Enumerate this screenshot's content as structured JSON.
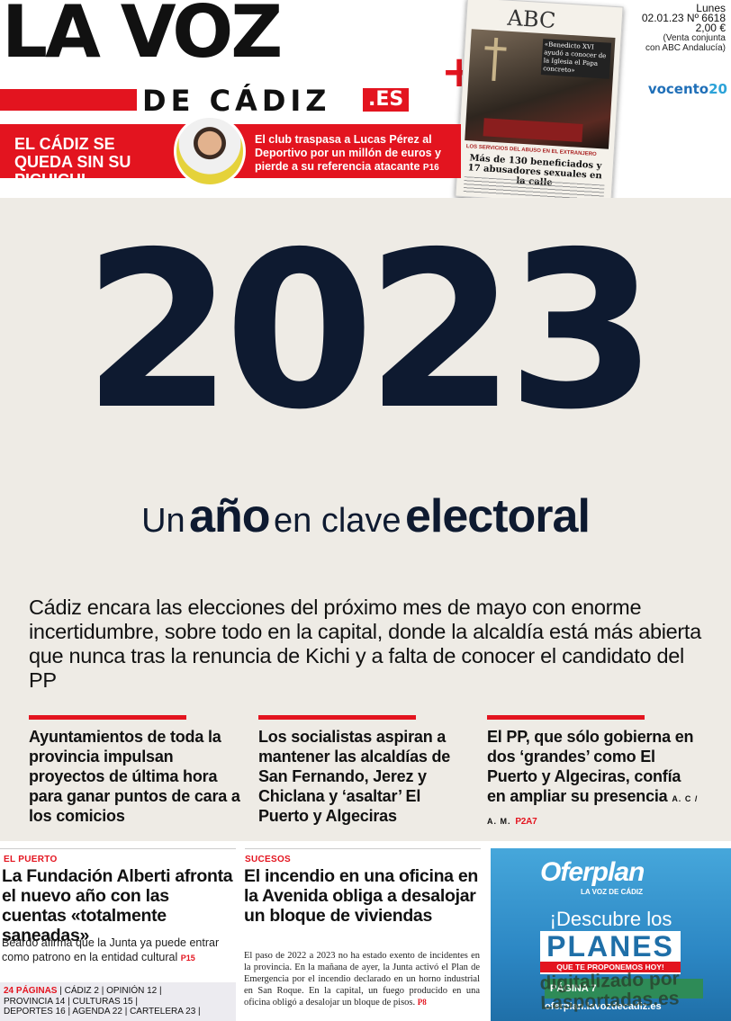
{
  "masthead": {
    "name_top": "LA VOZ",
    "name_bottom": "DE CÁDIZ",
    "badge": ".ES",
    "plus": "+"
  },
  "issue": {
    "day": "Lunes",
    "date_number": "02.01.23 Nº 6618",
    "price": "2,00 €",
    "note1": "(Venta conjunta",
    "note2": "con ABC Andalucía)",
    "group_logo": "vocento",
    "group_logo_number": "20"
  },
  "abc_cover": {
    "logo": "ABC",
    "quote": "«Benedicto XVI ayudó a conocer de la Iglesia el Papa concreto»",
    "kicker": "LOS SERVICIOS DEL ABUSO EN EL EXTRANJERO",
    "headline": "Más de 130 beneficiados y 17 abusadores sexuales en la calle"
  },
  "sports_teaser": {
    "title": "EL CÁDIZ SE QUEDA SIN SU PICHICHI",
    "text": "El club traspasa a Lucas Pérez al Deportivo por un millón de euros y pierde a su referencia atacante",
    "page": "P16"
  },
  "feature": {
    "year": "2023",
    "sub_1": "Un",
    "sub_2": "año",
    "sub_3": "en clave",
    "sub_4": "electoral",
    "lead": "Cádiz encara las elecciones del próximo mes de mayo con enorme incertidumbre, sobre todo en la capital, donde la alcaldía está más abierta que nunca tras la renuncia de Kichi y a falta de conocer el candidato del PP",
    "columns": [
      {
        "text": "Ayuntamientos de toda la provincia impulsan proyectos de última hora para ganar puntos de cara a los comicios"
      },
      {
        "text": "Los socialistas aspiran a mantener las alcaldías de San Fernando, Jerez y Chiclana y ‘asaltar’ El Puerto y Algeciras"
      },
      {
        "text": "El PP, que sólo gobierna en dos ‘grandes’ como El Puerto y Algeciras, confía en ampliar su presencia",
        "byline": "A. C / A. M.",
        "page": "P2A7"
      }
    ]
  },
  "story_left": {
    "kicker": "EL PUERTO",
    "headline": "La Fundación Alberti afronta el nuevo año con las cuentas «totalmente saneadas»",
    "summary": "Beardo afirma que la Junta ya puede entrar como patrono en la entidad cultural",
    "page": "P15"
  },
  "story_center": {
    "kicker": "SUCESOS",
    "headline": "El incendio en una oficina en la Avenida obliga a desalojar un bloque de viviendas",
    "body": "El paso de 2022 a 2023 no ha estado exento de incidentes en la provincia. En la mañana de ayer, la Junta activó el Plan de Emergencia por el incendio declarado en un horno industrial en San Roque. En la capital, un fuego producido en una oficina obligó a desalojar un bloque de pisos.",
    "page": "P8"
  },
  "index": {
    "pages": "24 PÁGINAS",
    "line1": " | CÁDIZ 2 | OPINIÓN 12 |",
    "line2": "PROVINCIA 14 | CULTURAS 15 |",
    "line3": "DEPORTES 16 | AGENDA 22 | CARTELERA 23 |"
  },
  "ad": {
    "brand": "Oferplan",
    "tag": "LA VOZ DE CÁDIZ",
    "line1": "¡Descubre los",
    "big": "PLANES",
    "small": "QUE TE PROPONEMOS HOY!",
    "green": "PÁGINA 7",
    "bottom": "oferplan.lavozdecadiz.es"
  },
  "watermark": {
    "line1": "digitalizado por",
    "line2": "Lasportadas.es"
  },
  "colors": {
    "red": "#e3141f",
    "navy": "#0e1a30",
    "feature_bg": "#eeebe5",
    "ad_blue": "#2c87c4"
  }
}
